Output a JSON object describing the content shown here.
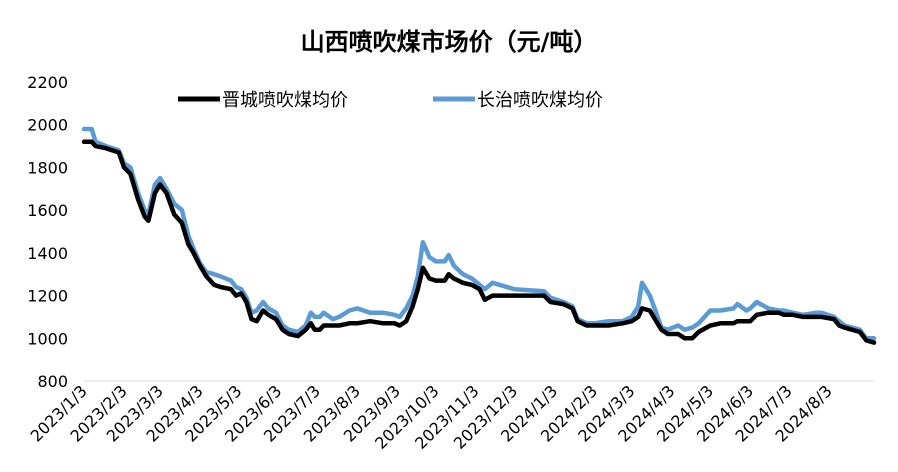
{
  "chart_data": {
    "type": "line",
    "title": "山西喷吹煤市场价（元/吨）",
    "xlabel": "",
    "ylabel": "",
    "ylim": [
      800,
      2200
    ],
    "yticks": [
      800,
      1000,
      1200,
      1400,
      1600,
      1800,
      2000,
      2200
    ],
    "xlim": [
      "2023-01-03",
      "2024-09-03"
    ],
    "xticks": [
      "2023/1/3",
      "2023/2/3",
      "2023/3/3",
      "2023/4/3",
      "2023/5/3",
      "2023/6/3",
      "2023/7/3",
      "2023/8/3",
      "2023/9/3",
      "2023/10/3",
      "2023/11/3",
      "2023/12/3",
      "2024/1/3",
      "2024/2/3",
      "2024/3/3",
      "2024/4/3",
      "2024/5/3",
      "2024/6/3",
      "2024/7/3",
      "2024/8/3"
    ],
    "grid": false,
    "legend_position": "top",
    "series": [
      {
        "name": "晋城喷吹煤均价",
        "color": "#000000",
        "points": [
          [
            "2023-01-03",
            1920
          ],
          [
            "2023-01-09",
            1920
          ],
          [
            "2023-01-12",
            1900
          ],
          [
            "2023-01-20",
            1890
          ],
          [
            "2023-01-30",
            1870
          ],
          [
            "2023-02-03",
            1800
          ],
          [
            "2023-02-08",
            1770
          ],
          [
            "2023-02-14",
            1650
          ],
          [
            "2023-02-19",
            1570
          ],
          [
            "2023-02-22",
            1550
          ],
          [
            "2023-02-27",
            1680
          ],
          [
            "2023-03-03",
            1720
          ],
          [
            "2023-03-08",
            1680
          ],
          [
            "2023-03-14",
            1580
          ],
          [
            "2023-03-20",
            1540
          ],
          [
            "2023-03-25",
            1440
          ],
          [
            "2023-03-29",
            1400
          ],
          [
            "2023-04-03",
            1340
          ],
          [
            "2023-04-08",
            1290
          ],
          [
            "2023-04-14",
            1250
          ],
          [
            "2023-04-19",
            1240
          ],
          [
            "2023-04-27",
            1230
          ],
          [
            "2023-05-01",
            1200
          ],
          [
            "2023-05-05",
            1210
          ],
          [
            "2023-05-09",
            1170
          ],
          [
            "2023-05-13",
            1090
          ],
          [
            "2023-05-17",
            1080
          ],
          [
            "2023-05-22",
            1130
          ],
          [
            "2023-05-26",
            1110
          ],
          [
            "2023-06-01",
            1090
          ],
          [
            "2023-06-06",
            1040
          ],
          [
            "2023-06-11",
            1020
          ],
          [
            "2023-06-18",
            1010
          ],
          [
            "2023-06-24",
            1040
          ],
          [
            "2023-06-28",
            1070
          ],
          [
            "2023-07-01",
            1040
          ],
          [
            "2023-07-05",
            1040
          ],
          [
            "2023-07-08",
            1060
          ],
          [
            "2023-07-15",
            1060
          ],
          [
            "2023-07-20",
            1060
          ],
          [
            "2023-07-28",
            1070
          ],
          [
            "2023-08-03",
            1070
          ],
          [
            "2023-08-13",
            1080
          ],
          [
            "2023-08-23",
            1070
          ],
          [
            "2023-09-01",
            1070
          ],
          [
            "2023-09-05",
            1060
          ],
          [
            "2023-09-10",
            1080
          ],
          [
            "2023-09-15",
            1150
          ],
          [
            "2023-09-19",
            1230
          ],
          [
            "2023-09-23",
            1330
          ],
          [
            "2023-09-28",
            1280
          ],
          [
            "2023-10-03",
            1270
          ],
          [
            "2023-10-10",
            1270
          ],
          [
            "2023-10-13",
            1300
          ],
          [
            "2023-10-17",
            1280
          ],
          [
            "2023-10-24",
            1260
          ],
          [
            "2023-10-31",
            1250
          ],
          [
            "2023-11-06",
            1230
          ],
          [
            "2023-11-10",
            1180
          ],
          [
            "2023-11-16",
            1200
          ],
          [
            "2023-12-03",
            1200
          ],
          [
            "2023-12-26",
            1200
          ],
          [
            "2023-12-31",
            1170
          ],
          [
            "2024-01-10",
            1160
          ],
          [
            "2024-01-17",
            1140
          ],
          [
            "2024-01-21",
            1080
          ],
          [
            "2024-01-28",
            1060
          ],
          [
            "2024-02-03",
            1060
          ],
          [
            "2024-02-14",
            1060
          ],
          [
            "2024-02-25",
            1070
          ],
          [
            "2024-03-03",
            1080
          ],
          [
            "2024-03-08",
            1100
          ],
          [
            "2024-03-11",
            1140
          ],
          [
            "2024-03-17",
            1130
          ],
          [
            "2024-03-22",
            1080
          ],
          [
            "2024-03-26",
            1040
          ],
          [
            "2024-03-31",
            1020
          ],
          [
            "2024-04-08",
            1020
          ],
          [
            "2024-04-13",
            1000
          ],
          [
            "2024-04-19",
            1000
          ],
          [
            "2024-04-24",
            1030
          ],
          [
            "2024-05-03",
            1060
          ],
          [
            "2024-05-11",
            1070
          ],
          [
            "2024-05-21",
            1070
          ],
          [
            "2024-05-24",
            1080
          ],
          [
            "2024-05-31",
            1080
          ],
          [
            "2024-06-03",
            1080
          ],
          [
            "2024-06-08",
            1110
          ],
          [
            "2024-06-17",
            1120
          ],
          [
            "2024-06-25",
            1120
          ],
          [
            "2024-06-29",
            1110
          ],
          [
            "2024-07-06",
            1110
          ],
          [
            "2024-07-14",
            1100
          ],
          [
            "2024-07-24",
            1100
          ],
          [
            "2024-07-28",
            1100
          ],
          [
            "2024-08-07",
            1090
          ],
          [
            "2024-08-11",
            1060
          ],
          [
            "2024-08-15",
            1050
          ],
          [
            "2024-08-27",
            1030
          ],
          [
            "2024-09-01",
            990
          ],
          [
            "2024-09-07",
            980
          ]
        ]
      },
      {
        "name": "长治喷吹煤均价",
        "color": "#5b9bd5",
        "points": [
          [
            "2023-01-03",
            1980
          ],
          [
            "2023-01-09",
            1980
          ],
          [
            "2023-01-12",
            1920
          ],
          [
            "2023-01-20",
            1900
          ],
          [
            "2023-01-30",
            1880
          ],
          [
            "2023-02-03",
            1820
          ],
          [
            "2023-02-08",
            1800
          ],
          [
            "2023-02-14",
            1680
          ],
          [
            "2023-02-19",
            1600
          ],
          [
            "2023-02-22",
            1580
          ],
          [
            "2023-02-27",
            1720
          ],
          [
            "2023-03-03",
            1750
          ],
          [
            "2023-03-08",
            1700
          ],
          [
            "2023-03-14",
            1630
          ],
          [
            "2023-03-20",
            1600
          ],
          [
            "2023-03-25",
            1480
          ],
          [
            "2023-03-29",
            1420
          ],
          [
            "2023-04-03",
            1350
          ],
          [
            "2023-04-08",
            1310
          ],
          [
            "2023-04-14",
            1300
          ],
          [
            "2023-04-19",
            1290
          ],
          [
            "2023-04-27",
            1270
          ],
          [
            "2023-05-01",
            1240
          ],
          [
            "2023-05-05",
            1230
          ],
          [
            "2023-05-09",
            1190
          ],
          [
            "2023-05-13",
            1120
          ],
          [
            "2023-05-17",
            1130
          ],
          [
            "2023-05-22",
            1170
          ],
          [
            "2023-05-26",
            1140
          ],
          [
            "2023-06-01",
            1120
          ],
          [
            "2023-06-06",
            1060
          ],
          [
            "2023-06-11",
            1040
          ],
          [
            "2023-06-18",
            1030
          ],
          [
            "2023-06-24",
            1060
          ],
          [
            "2023-06-28",
            1120
          ],
          [
            "2023-07-01",
            1100
          ],
          [
            "2023-07-05",
            1100
          ],
          [
            "2023-07-08",
            1120
          ],
          [
            "2023-07-15",
            1090
          ],
          [
            "2023-07-20",
            1100
          ],
          [
            "2023-07-28",
            1130
          ],
          [
            "2023-08-03",
            1140
          ],
          [
            "2023-08-13",
            1120
          ],
          [
            "2023-08-23",
            1120
          ],
          [
            "2023-09-01",
            1110
          ],
          [
            "2023-09-05",
            1100
          ],
          [
            "2023-09-10",
            1140
          ],
          [
            "2023-09-15",
            1200
          ],
          [
            "2023-09-19",
            1290
          ],
          [
            "2023-09-23",
            1450
          ],
          [
            "2023-09-28",
            1380
          ],
          [
            "2023-10-03",
            1360
          ],
          [
            "2023-10-10",
            1360
          ],
          [
            "2023-10-13",
            1390
          ],
          [
            "2023-10-17",
            1340
          ],
          [
            "2023-10-24",
            1300
          ],
          [
            "2023-10-31",
            1280
          ],
          [
            "2023-11-06",
            1250
          ],
          [
            "2023-11-10",
            1230
          ],
          [
            "2023-11-16",
            1260
          ],
          [
            "2023-12-03",
            1230
          ],
          [
            "2023-12-26",
            1220
          ],
          [
            "2023-12-31",
            1190
          ],
          [
            "2024-01-10",
            1170
          ],
          [
            "2024-01-17",
            1150
          ],
          [
            "2024-01-21",
            1090
          ],
          [
            "2024-01-28",
            1070
          ],
          [
            "2024-02-03",
            1070
          ],
          [
            "2024-02-14",
            1080
          ],
          [
            "2024-02-25",
            1080
          ],
          [
            "2024-03-03",
            1100
          ],
          [
            "2024-03-08",
            1150
          ],
          [
            "2024-03-11",
            1260
          ],
          [
            "2024-03-17",
            1200
          ],
          [
            "2024-03-22",
            1120
          ],
          [
            "2024-03-26",
            1050
          ],
          [
            "2024-03-31",
            1040
          ],
          [
            "2024-04-08",
            1060
          ],
          [
            "2024-04-13",
            1040
          ],
          [
            "2024-04-19",
            1050
          ],
          [
            "2024-04-24",
            1070
          ],
          [
            "2024-05-03",
            1130
          ],
          [
            "2024-05-11",
            1130
          ],
          [
            "2024-05-21",
            1140
          ],
          [
            "2024-05-24",
            1160
          ],
          [
            "2024-05-31",
            1130
          ],
          [
            "2024-06-03",
            1140
          ],
          [
            "2024-06-08",
            1170
          ],
          [
            "2024-06-17",
            1140
          ],
          [
            "2024-06-25",
            1130
          ],
          [
            "2024-06-29",
            1130
          ],
          [
            "2024-07-06",
            1120
          ],
          [
            "2024-07-14",
            1110
          ],
          [
            "2024-07-24",
            1120
          ],
          [
            "2024-07-28",
            1120
          ],
          [
            "2024-08-07",
            1100
          ],
          [
            "2024-08-11",
            1080
          ],
          [
            "2024-08-15",
            1060
          ],
          [
            "2024-08-27",
            1040
          ],
          [
            "2024-09-01",
            1000
          ],
          [
            "2024-09-07",
            1000
          ]
        ]
      }
    ]
  }
}
